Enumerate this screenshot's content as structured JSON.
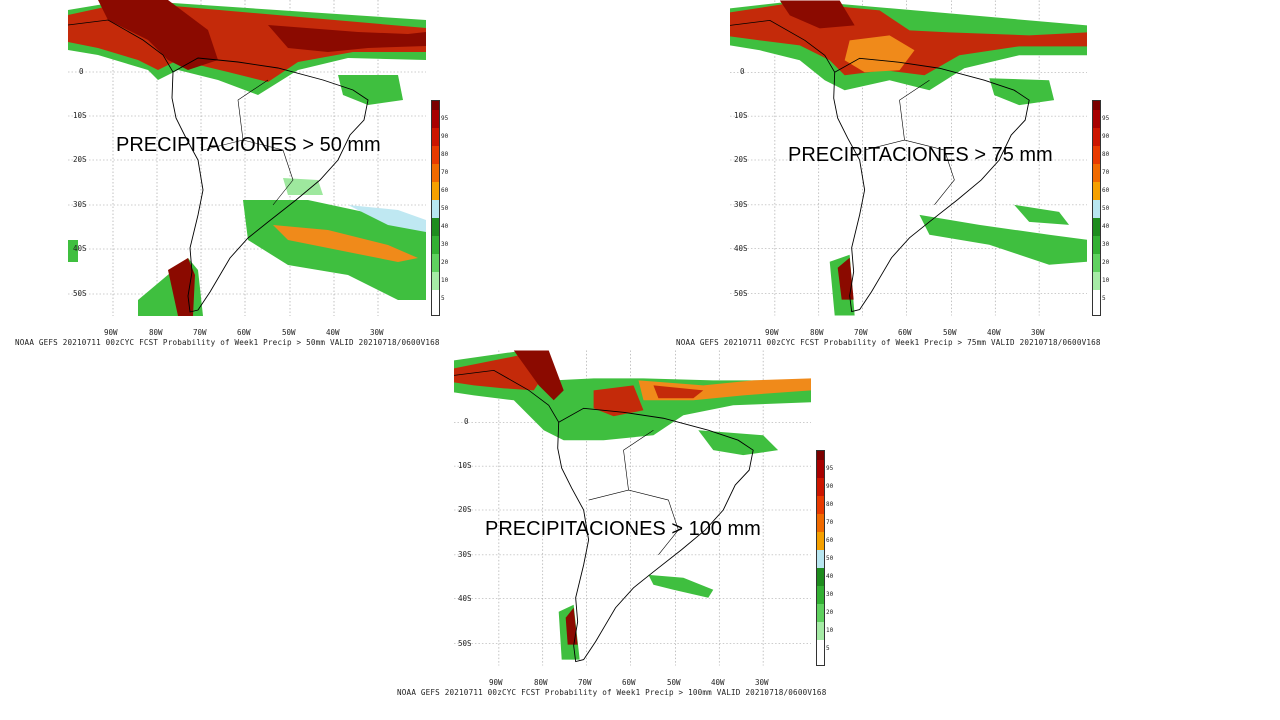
{
  "panels": [
    {
      "overlay_title": "PRECIPITACIONES > 50 mm",
      "caption": "NOAA GEFS 20210711 00zCYC FCST Probability of Week1 Precip > 50mm  VALID 20210718/0600V168",
      "lat_labels": [
        "0",
        "10S",
        "20S",
        "30S",
        "40S",
        "50S"
      ],
      "lon_labels": [
        "90W",
        "80W",
        "70W",
        "60W",
        "50W",
        "40W",
        "30W"
      ],
      "colorbar_labels": [
        "95",
        "90",
        "80",
        "70",
        "60",
        "50",
        "40",
        "30",
        "20",
        "10",
        "5"
      ]
    },
    {
      "overlay_title": "PRECIPITACIONES > 75 mm",
      "caption": "NOAA GEFS 20210711 00zCYC FCST Probability of Week1 Precip > 75mm  VALID 20210718/0600V168",
      "lat_labels": [
        "0",
        "10S",
        "20S",
        "30S",
        "40S",
        "50S"
      ],
      "lon_labels": [
        "90W",
        "80W",
        "70W",
        "60W",
        "50W",
        "40W",
        "30W"
      ],
      "colorbar_labels": [
        "95",
        "90",
        "80",
        "70",
        "60",
        "50",
        "40",
        "30",
        "20",
        "10",
        "5"
      ]
    },
    {
      "overlay_title": "PRECIPITACIONES > 100 mm",
      "caption": "NOAA GEFS 20210711 00zCYC FCST Probability of Week1 Precip > 100mm  VALID 20210718/0600V168",
      "lat_labels": [
        "0",
        "10S",
        "20S",
        "30S",
        "40S",
        "50S"
      ],
      "lon_labels": [
        "90W",
        "80W",
        "70W",
        "60W",
        "50W",
        "40W",
        "30W"
      ],
      "colorbar_labels": [
        "95",
        "90",
        "80",
        "70",
        "60",
        "50",
        "40",
        "30",
        "20",
        "10",
        "5"
      ]
    }
  ],
  "colors": {
    "cb": [
      "#7a0000",
      "#a80000",
      "#cc1500",
      "#e83a00",
      "#f06a00",
      "#f5a000",
      "#b8e6f0",
      "#1e8c1e",
      "#33b033",
      "#5fd15f",
      "#a6eba6",
      "#ffffff"
    ],
    "dark_red": "#8b0a00",
    "red": "#c42a0a",
    "orange": "#f08a1a",
    "green": "#3fbf3f",
    "light_green": "#9ee89e",
    "light_blue": "#bfe8f2",
    "grid": "#9a9a9a",
    "outline": "#000000"
  }
}
